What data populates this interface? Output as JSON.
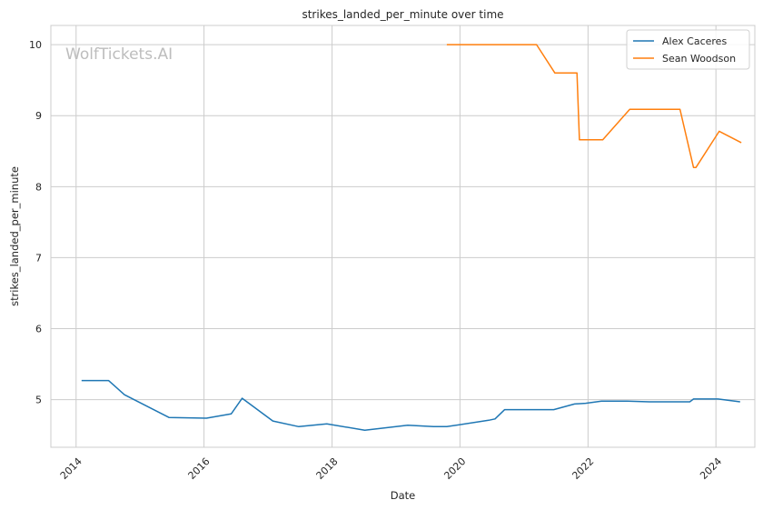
{
  "watermark": "WolfTickets.AI",
  "chart_data": {
    "type": "line",
    "title": "strikes_landed_per_minute over time",
    "xlabel": "Date",
    "ylabel": "strikes_landed_per_minute",
    "xlim": [
      "2013-08-10",
      "2024-08-10"
    ],
    "ylim": [
      4.33,
      10.27
    ],
    "x_ticks": [
      "2014-01-01",
      "2016-01-01",
      "2018-01-01",
      "2020-01-01",
      "2022-01-01",
      "2024-01-01"
    ],
    "x_tick_labels": [
      "2014",
      "2016",
      "2018",
      "2020",
      "2022",
      "2024"
    ],
    "y_ticks": [
      5,
      6,
      7,
      8,
      9,
      10
    ],
    "y_tick_labels": [
      "5",
      "6",
      "7",
      "8",
      "9",
      "10"
    ],
    "grid": true,
    "legend_position": "top-right",
    "series": [
      {
        "name": "Alex Caceres",
        "color": "#1f77b4",
        "points": [
          [
            "2014-02-01",
            5.27
          ],
          [
            "2014-07-05",
            5.27
          ],
          [
            "2014-10-04",
            5.07
          ],
          [
            "2015-06-15",
            4.75
          ],
          [
            "2016-01-15",
            4.74
          ],
          [
            "2016-06-04",
            4.8
          ],
          [
            "2016-08-06",
            5.02
          ],
          [
            "2017-01-28",
            4.7
          ],
          [
            "2017-06-25",
            4.62
          ],
          [
            "2017-12-02",
            4.66
          ],
          [
            "2018-07-07",
            4.57
          ],
          [
            "2019-03-09",
            4.64
          ],
          [
            "2019-08-03",
            4.62
          ],
          [
            "2019-10-18",
            4.62
          ],
          [
            "2020-06-13",
            4.71
          ],
          [
            "2020-07-19",
            4.73
          ],
          [
            "2020-09-12",
            4.86
          ],
          [
            "2021-06-19",
            4.86
          ],
          [
            "2021-10-16",
            4.94
          ],
          [
            "2021-12-18",
            4.95
          ],
          [
            "2022-03-19",
            4.98
          ],
          [
            "2022-08-13",
            4.98
          ],
          [
            "2022-12-17",
            4.97
          ],
          [
            "2023-07-01",
            4.97
          ],
          [
            "2023-08-05",
            4.97
          ],
          [
            "2023-08-26",
            5.01
          ],
          [
            "2024-01-13",
            5.01
          ],
          [
            "2024-05-18",
            4.97
          ]
        ]
      },
      {
        "name": "Sean Woodson",
        "color": "#ff7f0e",
        "points": [
          [
            "2019-10-18",
            10.0
          ],
          [
            "2021-03-13",
            10.0
          ],
          [
            "2021-06-26",
            9.6
          ],
          [
            "2021-10-30",
            9.6
          ],
          [
            "2021-11-13",
            8.66
          ],
          [
            "2022-03-26",
            8.66
          ],
          [
            "2022-08-27",
            9.09
          ],
          [
            "2023-06-10",
            9.09
          ],
          [
            "2023-08-26",
            8.27
          ],
          [
            "2023-09-09",
            8.27
          ],
          [
            "2024-01-20",
            8.78
          ],
          [
            "2024-05-25",
            8.62
          ]
        ]
      }
    ]
  }
}
